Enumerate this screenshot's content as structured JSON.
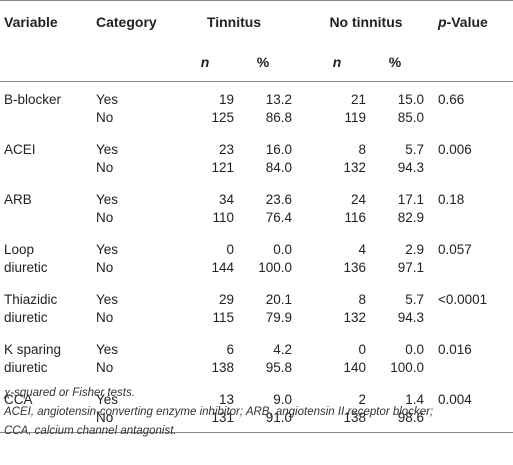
{
  "table": {
    "headers": {
      "variable": "Variable",
      "category": "Category",
      "tinnitus": "Tinnitus",
      "no_tinnitus": "No tinnitus",
      "p_value_italic": "p",
      "p_value_rest": "-Value",
      "n": "n",
      "pct": "%"
    },
    "rows": [
      {
        "var1": "B-blocker",
        "var2": "",
        "yes": [
          "Yes",
          "19",
          "13.2",
          "21",
          "15.0"
        ],
        "no": [
          "No",
          "125",
          "86.8",
          "119",
          "85.0"
        ],
        "p": "0.66"
      },
      {
        "var1": "ACEI",
        "var2": "",
        "yes": [
          "Yes",
          "23",
          "16.0",
          "8",
          "5.7"
        ],
        "no": [
          "No",
          "121",
          "84.0",
          "132",
          "94.3"
        ],
        "p": "0.006"
      },
      {
        "var1": "ARB",
        "var2": "",
        "yes": [
          "Yes",
          "34",
          "23.6",
          "24",
          "17.1"
        ],
        "no": [
          "No",
          "110",
          "76.4",
          "116",
          "82.9"
        ],
        "p": "0.18"
      },
      {
        "var1": "Loop",
        "var2": "diuretic",
        "yes": [
          "Yes",
          "0",
          "0.0",
          "4",
          "2.9"
        ],
        "no": [
          "No",
          "144",
          "100.0",
          "136",
          "97.1"
        ],
        "p": "0.057"
      },
      {
        "var1": "Thiazidic",
        "var2": "diuretic",
        "yes": [
          "Yes",
          "29",
          "20.1",
          "8",
          "5.7"
        ],
        "no": [
          "No",
          "115",
          "79.9",
          "132",
          "94.3"
        ],
        "p": "<0.0001"
      },
      {
        "var1": "K sparing",
        "var2": "diuretic",
        "yes": [
          "Yes",
          "6",
          "4.2",
          "0",
          "0.0"
        ],
        "no": [
          "No",
          "138",
          "95.8",
          "140",
          "100.0"
        ],
        "p": "0.016"
      },
      {
        "var1": "CCA",
        "var2": "",
        "yes": [
          "Yes",
          "13",
          "9.0",
          "2",
          "1.4"
        ],
        "no": [
          "No",
          "131",
          "91.0",
          "138",
          "98.6"
        ],
        "p": "0.004"
      }
    ]
  },
  "footnotes": {
    "line1": "χ-squared or Fisher tests.",
    "line2": "ACEI, angiotensin-converting enzyme inhibitor; ARB, angiotensin II receptor blocker;",
    "line3": "CCA, calcium channel antagonist."
  }
}
